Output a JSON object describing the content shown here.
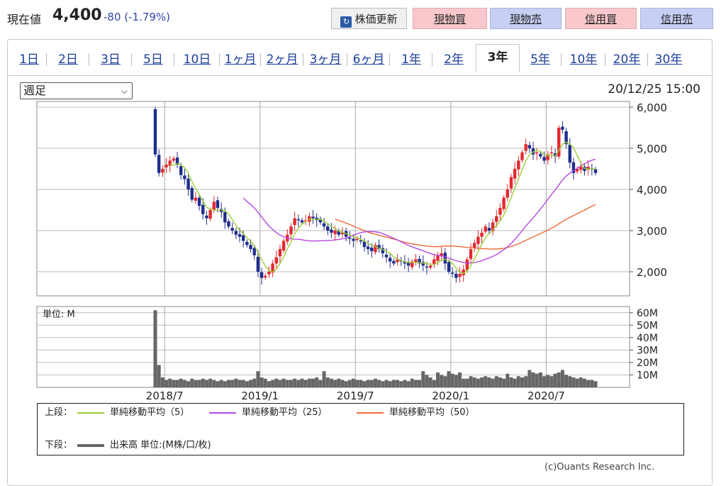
{
  "header": {
    "price_label": "現在値",
    "price_value": "4,400",
    "price_change": "-80 (-1.79%)",
    "refresh_label": "株価更新",
    "genbutsu_buy": "現物買",
    "genbutsu_sell": "現物売",
    "shinyo_buy": "信用買",
    "shinyo_sell": "信用売"
  },
  "colors": {
    "up_candle": "#e4292f",
    "down_candle": "#1e2d8c",
    "ma5": "#9ccf37",
    "ma25": "#b448e0",
    "ma50": "#ee6a3a",
    "volume": "#666666",
    "tab_link": "#1d3f9a"
  },
  "tabs": [
    {
      "label": "1日",
      "active": false
    },
    {
      "label": "2日",
      "active": false
    },
    {
      "label": "3日",
      "active": false
    },
    {
      "label": "5日",
      "active": false
    },
    {
      "label": "10日",
      "active": false
    },
    {
      "label": "1ヶ月",
      "active": false
    },
    {
      "label": "2ヶ月",
      "active": false
    },
    {
      "label": "3ヶ月",
      "active": false
    },
    {
      "label": "6ヶ月",
      "active": false
    },
    {
      "label": "1年",
      "active": false
    },
    {
      "label": "2年",
      "active": false
    },
    {
      "label": "3年",
      "active": true
    },
    {
      "label": "5年",
      "active": false
    },
    {
      "label": "10年",
      "active": false
    },
    {
      "label": "20年",
      "active": false
    },
    {
      "label": "30年",
      "active": false
    }
  ],
  "period_select": {
    "value": "週足"
  },
  "timestamp": "20/12/25 15:00",
  "volume_unit_label": "単位: M",
  "legend": {
    "upper_label": "上段：",
    "lower_label": "下段：",
    "ma5_label": "単純移動平均（5）",
    "ma25_label": "単純移動平均（25）",
    "ma50_label": "単純移動平均（50）",
    "volume_label": "出来高 単位:(M株/口/枚)"
  },
  "credit": "(c)Ouants Research Inc.",
  "chart_data": {
    "type": "candlestick",
    "price_axis": {
      "min": 1500,
      "max": 6000,
      "ticks": [
        6000,
        5000,
        4000,
        3000,
        2000
      ],
      "tick_labels": [
        "6,000",
        "5,000",
        "4,000",
        "3,000",
        "2,000"
      ]
    },
    "volume_axis": {
      "min": 0,
      "max": 65,
      "ticks": [
        60,
        50,
        40,
        30,
        20,
        10
      ],
      "tick_labels": [
        "60M",
        "50M",
        "40M",
        "30M",
        "20M",
        "10M"
      ]
    },
    "x_axis": {
      "labels": [
        "2018/7",
        "2019/1",
        "2019/7",
        "2020/1",
        "2020/7"
      ],
      "label_week_index": [
        1,
        27,
        53,
        79,
        105
      ]
    },
    "weekly_close": [
      4850,
      4400,
      4500,
      4600,
      4700,
      4750,
      4600,
      4350,
      4250,
      4000,
      3750,
      3800,
      3600,
      3400,
      3300,
      3500,
      3700,
      3550,
      3450,
      3200,
      3100,
      3000,
      2900,
      2850,
      2750,
      2650,
      2550,
      2400,
      2000,
      1850,
      1900,
      2000,
      2200,
      2350,
      2550,
      2750,
      2900,
      3100,
      3300,
      3250,
      3200,
      3250,
      3350,
      3300,
      3250,
      3200,
      3100,
      3000,
      2950,
      3000,
      2900,
      2950,
      2850,
      2800,
      2750,
      2800,
      2750,
      2600,
      2550,
      2500,
      2650,
      2550,
      2450,
      2350,
      2250,
      2200,
      2300,
      2250,
      2200,
      2150,
      2250,
      2300,
      2200,
      2150,
      2100,
      2150,
      2300,
      2400,
      2450,
      2200,
      2000,
      1950,
      1850,
      1950,
      2050,
      2300,
      2550,
      2700,
      2850,
      2950,
      3100,
      3000,
      3200,
      3350,
      3550,
      3800,
      4000,
      4300,
      4500,
      4700,
      4900,
      5100,
      5000,
      4850,
      4900,
      4800,
      4700,
      4850,
      4900,
      4800,
      5500,
      5450,
      5100,
      4650,
      4400,
      4500,
      4550,
      4450,
      4550,
      4500,
      4400
    ],
    "volume_M": [
      62,
      18,
      8,
      6,
      7,
      6,
      6,
      7,
      6,
      5,
      7,
      6,
      6,
      7,
      6,
      7,
      6,
      5,
      6,
      5,
      6,
      6,
      7,
      6,
      6,
      5,
      6,
      7,
      13,
      8,
      7,
      5,
      6,
      7,
      6,
      7,
      6,
      6,
      7,
      6,
      7,
      6,
      7,
      7,
      8,
      6,
      13,
      8,
      7,
      6,
      7,
      6,
      5,
      6,
      7,
      6,
      6,
      5,
      6,
      6,
      7,
      6,
      5,
      6,
      5,
      6,
      6,
      5,
      6,
      5,
      7,
      6,
      6,
      13,
      10,
      8,
      6,
      12,
      10,
      9,
      13,
      11,
      10,
      12,
      7,
      7,
      9,
      8,
      7,
      8,
      9,
      8,
      7,
      9,
      8,
      7,
      11,
      8,
      7,
      9,
      8,
      9,
      14,
      12,
      11,
      12,
      9,
      10,
      9,
      11,
      12,
      14,
      10,
      9,
      8,
      7,
      8,
      7,
      6,
      6,
      5
    ],
    "ma5_label": "単純移動平均（5）",
    "ma25_label": "単純移動平均（25）",
    "ma50_label": "単純移動平均（50）",
    "volume_label": "出来高"
  }
}
